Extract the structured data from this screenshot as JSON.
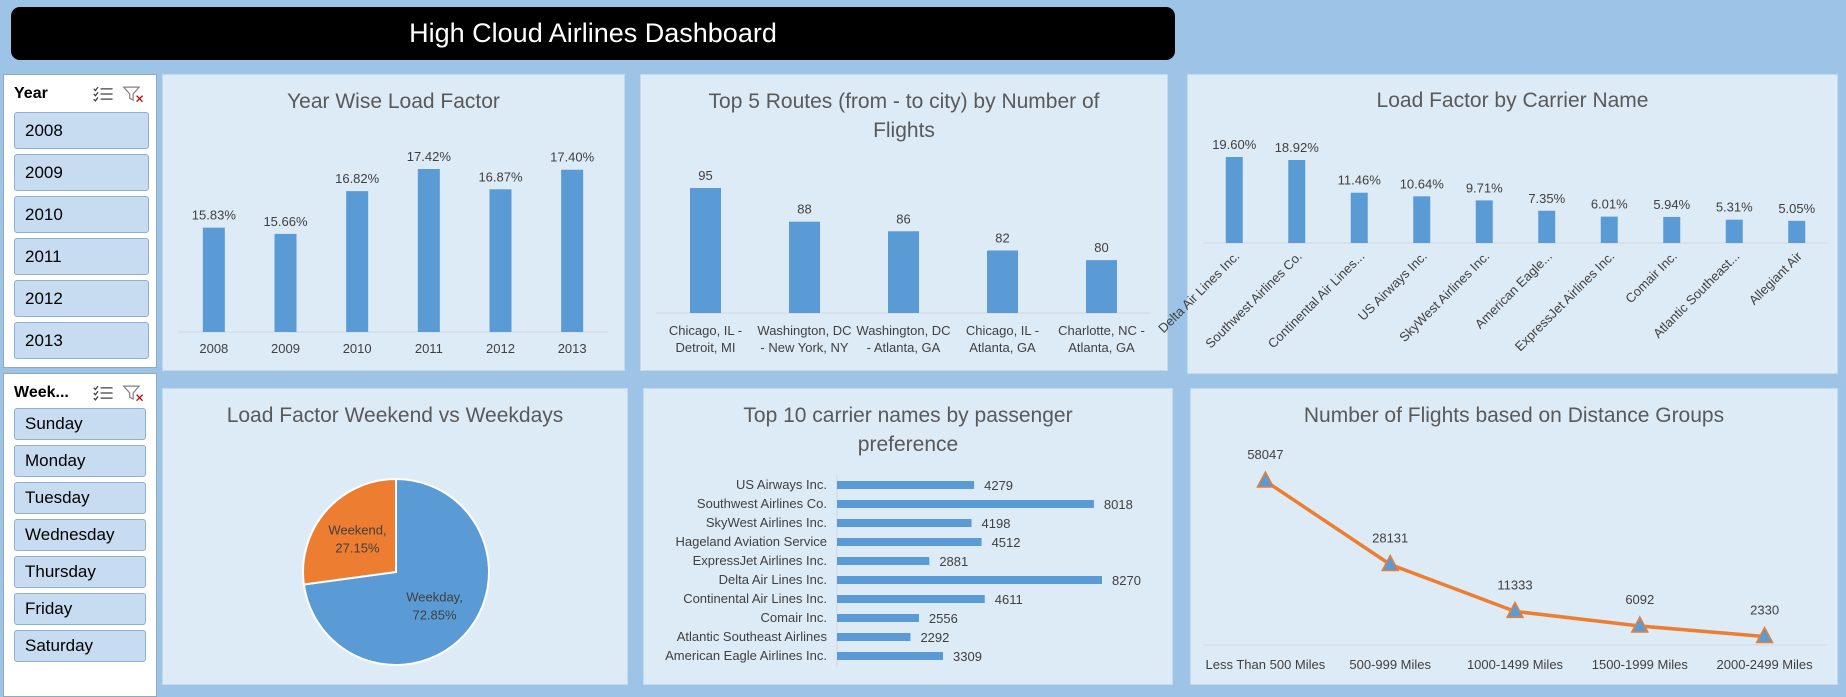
{
  "header": {
    "title": "High Cloud Airlines Dashboard"
  },
  "colors": {
    "bar": "#5b9bd5",
    "accent": "#ed7d31",
    "panel": "#ddebf7",
    "background": "#9dc3e6"
  },
  "slicers": {
    "year": {
      "title": "Year",
      "items": [
        "2008",
        "2009",
        "2010",
        "2011",
        "2012",
        "2013"
      ]
    },
    "weekday": {
      "title": "Week...",
      "items": [
        "Sunday",
        "Monday",
        "Tuesday",
        "Wednesday",
        "Thursday",
        "Friday",
        "Saturday"
      ]
    }
  },
  "chart_data": [
    {
      "id": "year-wise",
      "type": "bar",
      "title": "Year Wise Load Factor",
      "categories": [
        "2008",
        "2009",
        "2010",
        "2011",
        "2012",
        "2013"
      ],
      "values": [
        15.83,
        15.66,
        16.82,
        17.42,
        16.87,
        17.4
      ],
      "labels": [
        "15.83%",
        "15.66%",
        "16.82%",
        "17.42%",
        "16.87%",
        "17.40%"
      ],
      "ylim": [
        13.0,
        17.42
      ]
    },
    {
      "id": "top-routes",
      "type": "bar",
      "title": "Top 5 Routes (from -  to city) by Number of Flights",
      "categories": [
        [
          "Chicago, IL -",
          "Detroit, MI"
        ],
        [
          "Washington, DC",
          "- New York, NY"
        ],
        [
          "Washington, DC",
          "- Atlanta, GA"
        ],
        [
          "Chicago, IL -",
          "Atlanta, GA"
        ],
        [
          "Charlotte, NC -",
          "Atlanta, GA"
        ]
      ],
      "values": [
        95,
        88,
        86,
        82,
        80
      ],
      "labels": [
        "95",
        "88",
        "86",
        "82",
        "80"
      ],
      "ylim": [
        69,
        95
      ]
    },
    {
      "id": "carrier-load",
      "type": "bar",
      "title": "Load Factor by Carrier Name",
      "categories": [
        "Delta Air Lines Inc.",
        "Southwest Airlines Co.",
        "Continental Air Lines...",
        "US Airways Inc.",
        "SkyWest Airlines Inc.",
        "American Eagle...",
        "ExpressJet Airlines Inc.",
        "Comair Inc.",
        "Atlantic Southeast...",
        "Allegiant Air"
      ],
      "values": [
        19.6,
        18.92,
        11.46,
        10.64,
        9.71,
        7.35,
        6.01,
        5.94,
        5.31,
        5.05
      ],
      "labels": [
        "19.60%",
        "18.92%",
        "11.46%",
        "10.64%",
        "9.71%",
        "7.35%",
        "6.01%",
        "5.94%",
        "5.31%",
        "5.05%"
      ],
      "ylim": [
        0,
        19.6
      ]
    },
    {
      "id": "weekend-pie",
      "type": "pie",
      "title": "Load Factor Weekend vs Weekdays",
      "slices": [
        {
          "name": "Weekday,",
          "value": 72.85,
          "label": "72.85%",
          "color": "#5b9bd5"
        },
        {
          "name": "Weekend,",
          "value": 27.15,
          "label": "27.15%",
          "color": "#ed7d31"
        }
      ]
    },
    {
      "id": "passenger-pref",
      "type": "bar",
      "orientation": "horizontal",
      "title": "Top 10 carrier names by passenger preference",
      "categories": [
        "US Airways Inc.",
        "Southwest Airlines Co.",
        "SkyWest Airlines Inc.",
        "Hageland Aviation Service",
        "ExpressJet Airlines Inc.",
        "Delta Air Lines Inc.",
        "Continental Air Lines Inc.",
        "Comair Inc.",
        "Atlantic Southeast Airlines",
        "American Eagle Airlines Inc."
      ],
      "values": [
        4279,
        8018,
        4198,
        4512,
        2881,
        8270,
        4611,
        2556,
        2292,
        3309
      ],
      "labels": [
        "4279",
        "8018",
        "4198",
        "4512",
        "2881",
        "8270",
        "4611",
        "2556",
        "2292",
        "3309"
      ],
      "xlim": [
        0,
        8270
      ]
    },
    {
      "id": "distance-groups",
      "type": "line",
      "title": "Number of Flights based on Distance Groups",
      "categories": [
        "Less Than 500 Miles",
        "500-999 Miles",
        "1000-1499 Miles",
        "1500-1999 Miles",
        "2000-2499 Miles"
      ],
      "values": [
        58047,
        28131,
        11333,
        6092,
        2330
      ],
      "labels": [
        "58047",
        "28131",
        "11333",
        "6092",
        "2330"
      ],
      "ylim": [
        0,
        58047
      ]
    }
  ]
}
